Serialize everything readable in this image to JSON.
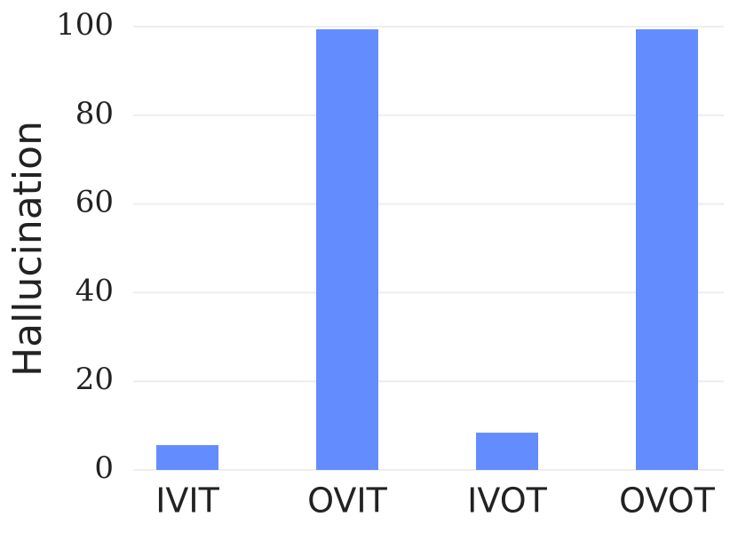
{
  "chart_data": {
    "type": "bar",
    "y_label": "Hallucination",
    "categories": [
      "IVIT",
      "OVIT",
      "IVOT",
      "OVOT"
    ],
    "values": [
      5.6,
      99.4,
      8.4,
      99.4
    ],
    "color": "#638cff",
    "ylim": [
      0,
      100
    ],
    "yticks": [
      0,
      20,
      40,
      60,
      80,
      100
    ],
    "grid": true
  }
}
